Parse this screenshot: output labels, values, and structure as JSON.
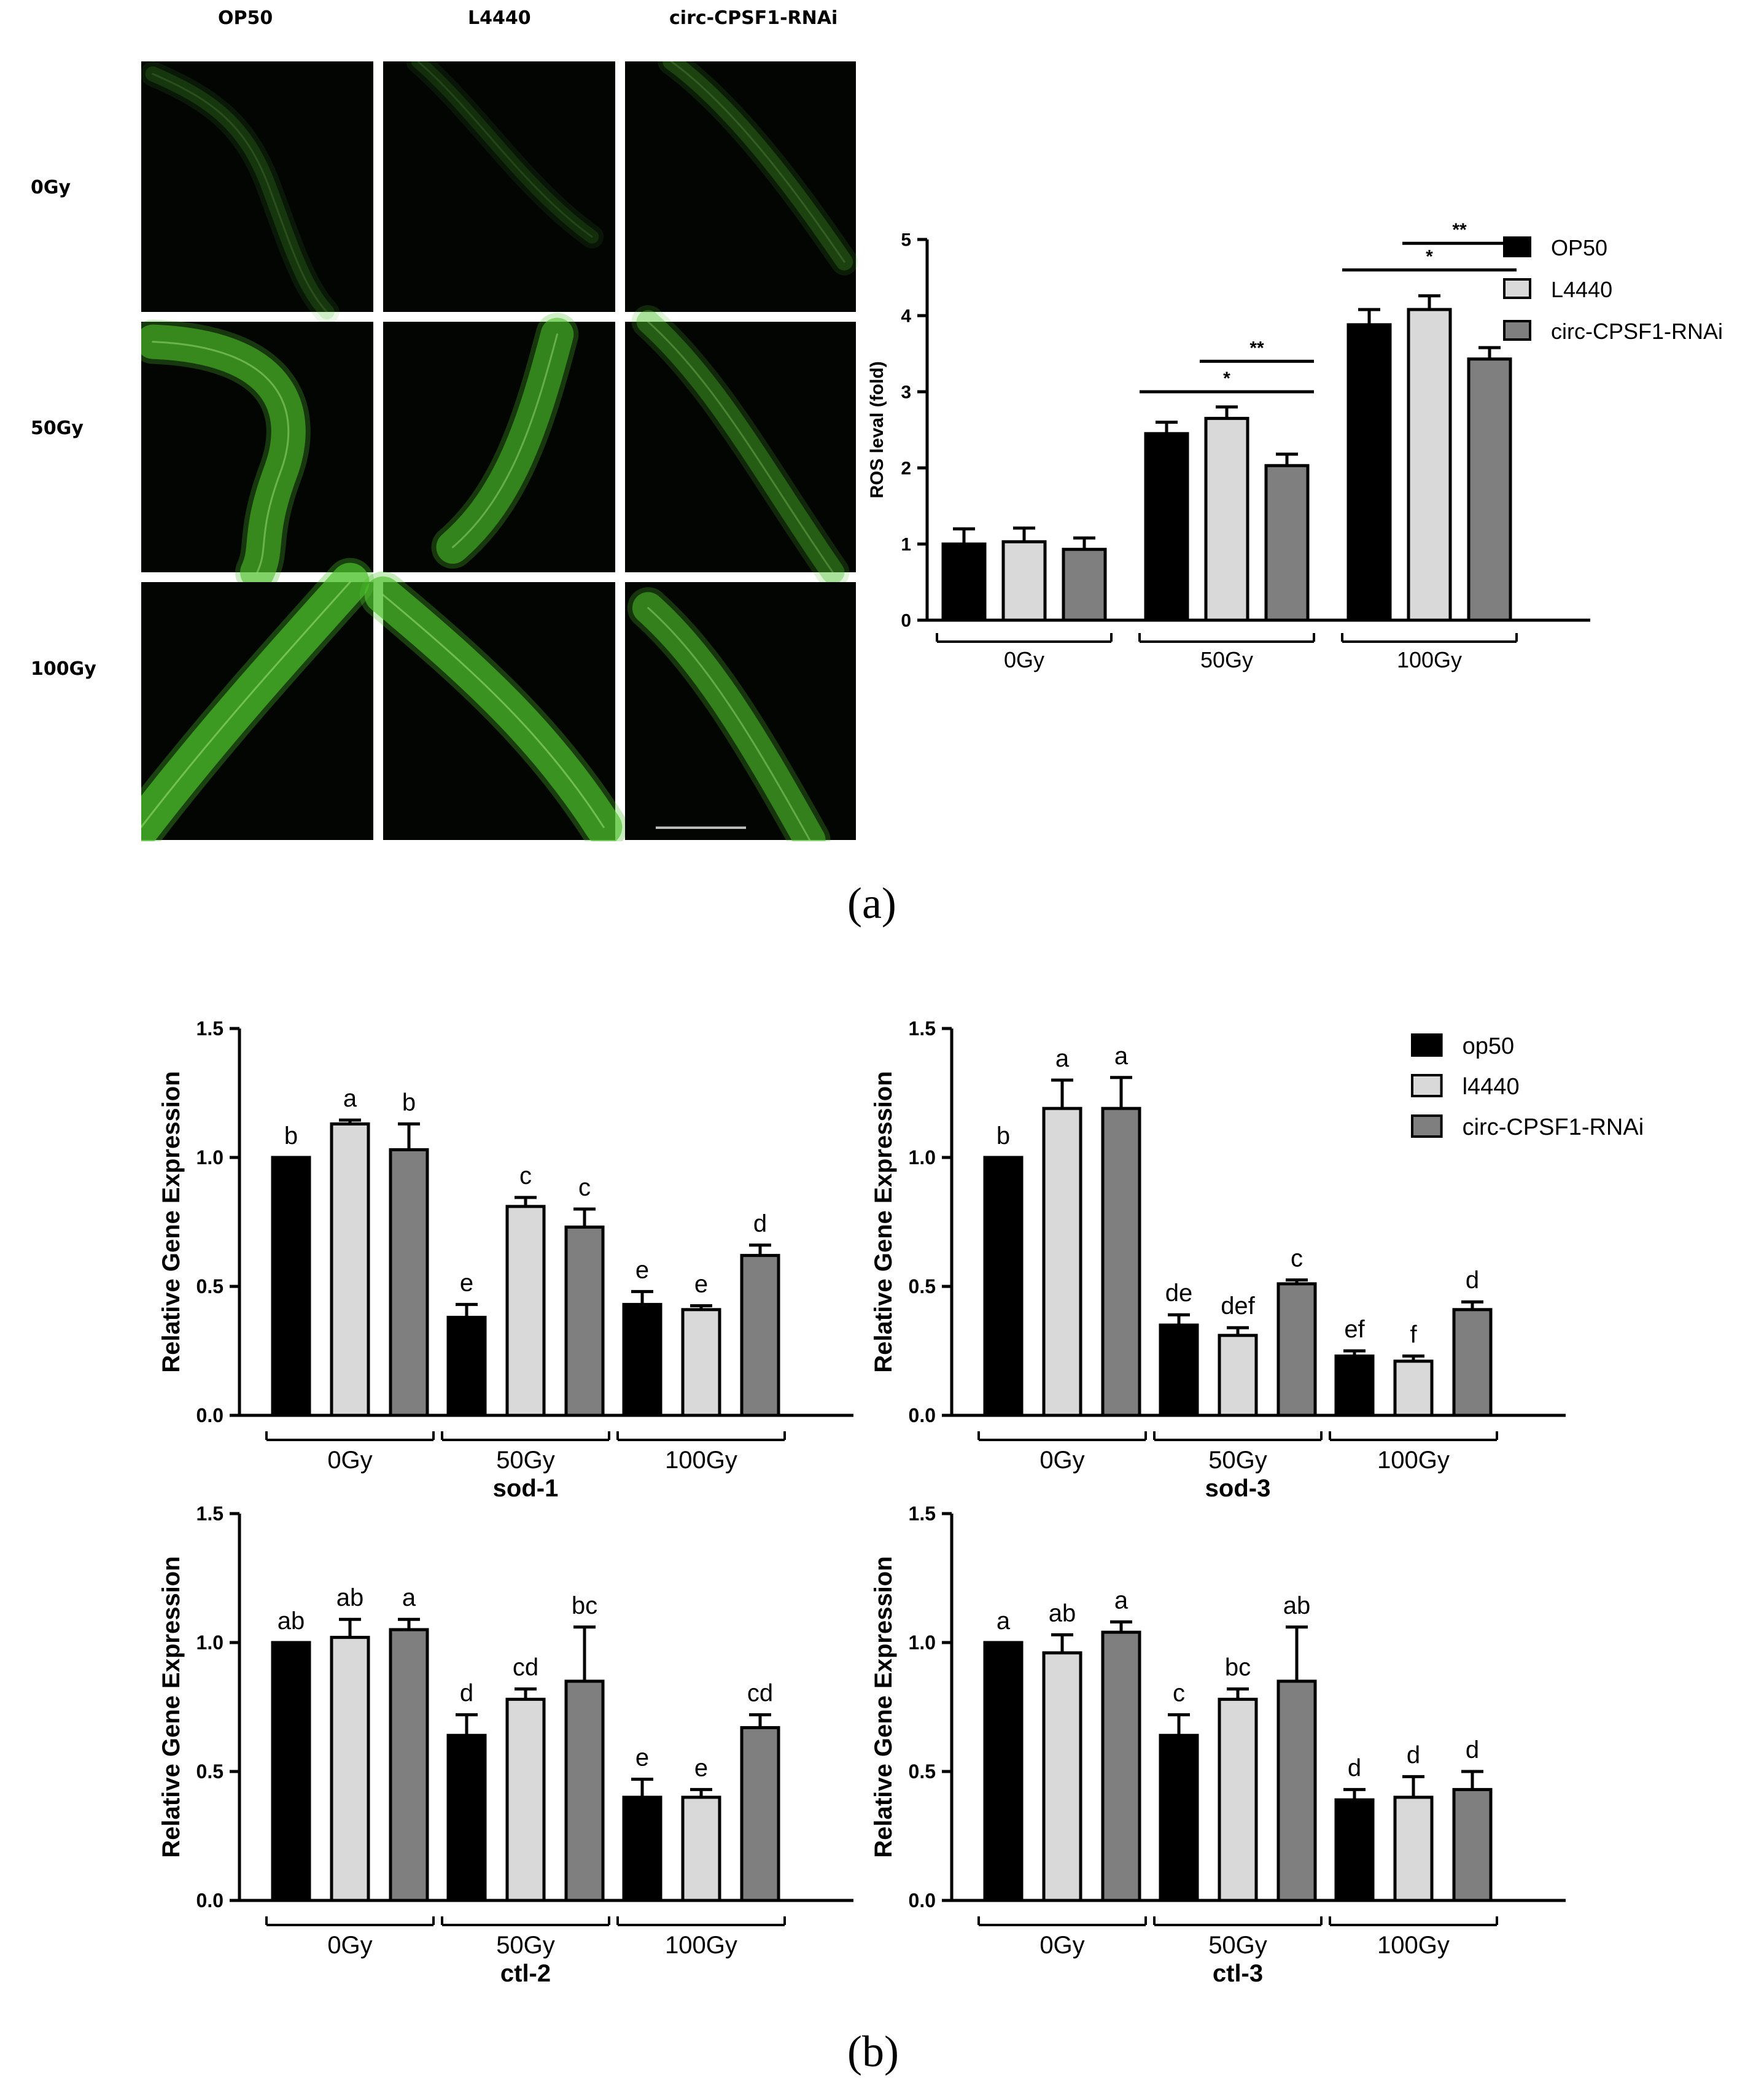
{
  "panel_labels": {
    "a": "(a)",
    "b": "(b)"
  },
  "colors": {
    "op50": "#000000",
    "l4440": "#d9d9d9",
    "circ": "#7f7f7f",
    "fluor": "#4cc02a"
  },
  "micrograph": {
    "columns": [
      "OP50",
      "L4440",
      "circ-CPSF1-RNAi"
    ],
    "rows": [
      "0Gy",
      "50Gy",
      "100Gy"
    ],
    "intensity": [
      [
        0.1,
        0.05,
        0.18
      ],
      [
        0.8,
        0.75,
        0.4
      ],
      [
        0.95,
        0.9,
        0.7
      ]
    ]
  },
  "chart_data": [
    {
      "id": "ros",
      "type": "bar",
      "title": "",
      "xlabel": "",
      "ylabel": "ROS leval (fold)",
      "ylim": [
        0,
        5
      ],
      "yticks": [
        "0",
        "1",
        "2",
        "3",
        "4",
        "5"
      ],
      "categories": [
        "0Gy",
        "50Gy",
        "100Gy"
      ],
      "legend": {
        "position": "right",
        "entries": [
          "OP50",
          "L4440",
          "circ-CPSF1-RNAi"
        ]
      },
      "series": [
        {
          "name": "OP50",
          "values": [
            1.0,
            2.45,
            3.88
          ],
          "errors": [
            0.2,
            0.15,
            0.2
          ]
        },
        {
          "name": "L4440",
          "values": [
            1.03,
            2.65,
            4.08
          ],
          "errors": [
            0.18,
            0.15,
            0.18
          ]
        },
        {
          "name": "circ-CPSF1-RNAi",
          "values": [
            0.93,
            2.03,
            3.43
          ],
          "errors": [
            0.15,
            0.15,
            0.15
          ]
        }
      ],
      "significance": [
        {
          "group": 1,
          "from": 0,
          "to": 2,
          "label": "*",
          "y": 3.0
        },
        {
          "group": 1,
          "from": 1,
          "to": 2,
          "label": "**",
          "y": 3.4
        },
        {
          "group": 2,
          "from": 0,
          "to": 2,
          "label": "*",
          "y": 4.6
        },
        {
          "group": 2,
          "from": 1,
          "to": 2,
          "label": "**",
          "y": 4.95
        }
      ],
      "labels": []
    },
    {
      "id": "sod1",
      "type": "bar",
      "title": "sod-1",
      "xlabel": "",
      "ylabel": "Relative Gene Expression",
      "ylim": [
        0,
        1.5
      ],
      "yticks": [
        "0.0",
        "0.5",
        "1.0",
        "1.5"
      ],
      "categories": [
        "0Gy",
        "50Gy",
        "100Gy"
      ],
      "series": [
        {
          "name": "op50",
          "values": [
            1.0,
            0.38,
            0.43
          ],
          "errors": [
            0,
            0.05,
            0.05
          ]
        },
        {
          "name": "l4440",
          "values": [
            1.13,
            0.81,
            0.41
          ],
          "errors": [
            0.015,
            0.035,
            0.015
          ]
        },
        {
          "name": "circ-CPSF1-RNAi",
          "values": [
            1.03,
            0.73,
            0.62
          ],
          "errors": [
            0.1,
            0.07,
            0.04
          ]
        }
      ],
      "labels": [
        [
          "b",
          "a",
          "b"
        ],
        [
          "e",
          "c",
          "c"
        ],
        [
          "e",
          "e",
          "d"
        ]
      ]
    },
    {
      "id": "sod3",
      "type": "bar",
      "title": "sod-3",
      "xlabel": "",
      "ylabel": "Relative Gene Expression",
      "ylim": [
        0,
        1.5
      ],
      "yticks": [
        "0.0",
        "0.5",
        "1.0",
        "1.5"
      ],
      "categories": [
        "0Gy",
        "50Gy",
        "100Gy"
      ],
      "legend": {
        "position": "top-right",
        "entries": [
          "op50",
          "l4440",
          "circ-CPSF1-RNAi"
        ]
      },
      "series": [
        {
          "name": "op50",
          "values": [
            1.0,
            0.35,
            0.23
          ],
          "errors": [
            0,
            0.04,
            0.02
          ]
        },
        {
          "name": "l4440",
          "values": [
            1.19,
            0.31,
            0.21
          ],
          "errors": [
            0.11,
            0.03,
            0.02
          ]
        },
        {
          "name": "circ-CPSF1-RNAi",
          "values": [
            1.19,
            0.51,
            0.41
          ],
          "errors": [
            0.12,
            0.015,
            0.03
          ]
        }
      ],
      "labels": [
        [
          "b",
          "a",
          "a"
        ],
        [
          "de",
          "def",
          "c"
        ],
        [
          "ef",
          "f",
          "d"
        ]
      ]
    },
    {
      "id": "ctl2",
      "type": "bar",
      "title": "ctl-2",
      "xlabel": "",
      "ylabel": "Relative Gene Expression",
      "ylim": [
        0,
        1.5
      ],
      "yticks": [
        "0.0",
        "0.5",
        "1.0",
        "1.5"
      ],
      "categories": [
        "0Gy",
        "50Gy",
        "100Gy"
      ],
      "series": [
        {
          "name": "op50",
          "values": [
            1.0,
            0.64,
            0.4
          ],
          "errors": [
            0,
            0.08,
            0.07
          ]
        },
        {
          "name": "l4440",
          "values": [
            1.02,
            0.78,
            0.4
          ],
          "errors": [
            0.07,
            0.04,
            0.03
          ]
        },
        {
          "name": "circ-CPSF1-RNAi",
          "values": [
            1.05,
            0.85,
            0.67
          ],
          "errors": [
            0.04,
            0.21,
            0.05
          ]
        }
      ],
      "labels": [
        [
          "ab",
          "ab",
          "a"
        ],
        [
          "d",
          "cd",
          "bc"
        ],
        [
          "e",
          "e",
          "cd"
        ]
      ]
    },
    {
      "id": "ctl3",
      "type": "bar",
      "title": "ctl-3",
      "xlabel": "",
      "ylabel": "Relative Gene Expression",
      "ylim": [
        0,
        1.5
      ],
      "yticks": [
        "0.0",
        "0.5",
        "1.0",
        "1.5"
      ],
      "categories": [
        "0Gy",
        "50Gy",
        "100Gy"
      ],
      "series": [
        {
          "name": "op50",
          "values": [
            1.0,
            0.64,
            0.39
          ],
          "errors": [
            0,
            0.08,
            0.04
          ]
        },
        {
          "name": "l4440",
          "values": [
            0.96,
            0.78,
            0.4
          ],
          "errors": [
            0.07,
            0.04,
            0.08
          ]
        },
        {
          "name": "circ-CPSF1-RNAi",
          "values": [
            1.04,
            0.85,
            0.43
          ],
          "errors": [
            0.04,
            0.21,
            0.07
          ]
        }
      ],
      "labels": [
        [
          "a",
          "ab",
          "a"
        ],
        [
          "c",
          "bc",
          "ab"
        ],
        [
          "d",
          "d",
          "d"
        ]
      ]
    }
  ]
}
